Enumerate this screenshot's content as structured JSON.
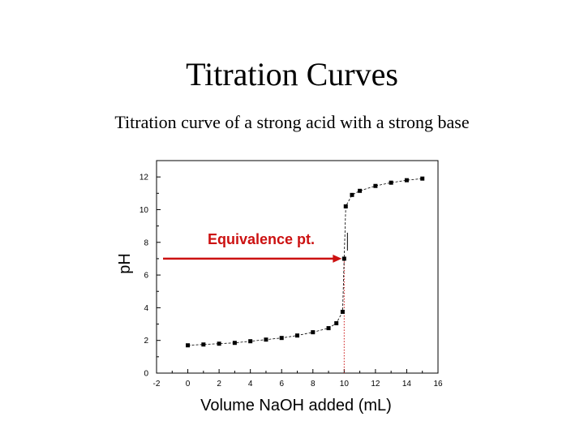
{
  "slide": {
    "title": "Titration Curves",
    "subtitle": "Titration curve of a strong acid with a strong base"
  },
  "chart_data": {
    "type": "scatter",
    "title": "",
    "xlabel": "Volume NaOH added (mL)",
    "ylabel": "pH",
    "xlim": [
      -2,
      16
    ],
    "ylim": [
      0,
      13
    ],
    "x_ticks": [
      -2,
      0,
      2,
      4,
      6,
      8,
      10,
      12,
      14,
      16
    ],
    "y_ticks": [
      0,
      2,
      4,
      6,
      8,
      10,
      12
    ],
    "grid": false,
    "marker_color": "#000000",
    "curve_color": "#000000",
    "points": [
      {
        "x": 0,
        "y": 1.7
      },
      {
        "x": 1,
        "y": 1.75
      },
      {
        "x": 2,
        "y": 1.8
      },
      {
        "x": 3,
        "y": 1.85
      },
      {
        "x": 4,
        "y": 1.95
      },
      {
        "x": 5,
        "y": 2.05
      },
      {
        "x": 6,
        "y": 2.15
      },
      {
        "x": 7,
        "y": 2.3
      },
      {
        "x": 8,
        "y": 2.5
      },
      {
        "x": 9,
        "y": 2.75
      },
      {
        "x": 9.5,
        "y": 3.05
      },
      {
        "x": 9.9,
        "y": 3.75
      },
      {
        "x": 10,
        "y": 7.0
      },
      {
        "x": 10.1,
        "y": 10.2
      },
      {
        "x": 10.5,
        "y": 10.9
      },
      {
        "x": 11,
        "y": 11.15
      },
      {
        "x": 12,
        "y": 11.45
      },
      {
        "x": 13,
        "y": 11.65
      },
      {
        "x": 14,
        "y": 11.8
      },
      {
        "x": 15,
        "y": 11.9
      }
    ],
    "equivalence": {
      "label": "Equivalence pt.",
      "x": 10,
      "y": 7,
      "arrow_color": "#cc1111",
      "guide_color": "#cc1111"
    }
  }
}
